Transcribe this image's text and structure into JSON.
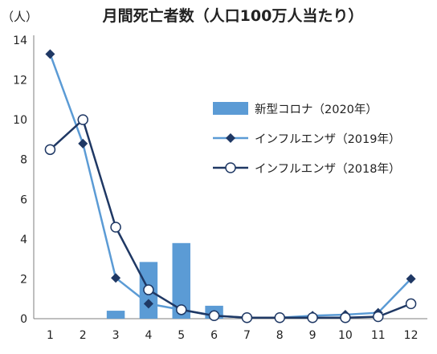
{
  "chart_data": {
    "type": "bar",
    "title": "月間死亡者数（人口100万人当たり）",
    "ylabel": "（人）",
    "xlabel": "",
    "ylim": [
      0,
      14
    ],
    "y_ticks": [
      0,
      2,
      4,
      6,
      8,
      10,
      12,
      14
    ],
    "categories": [
      "1",
      "2",
      "3",
      "4",
      "5",
      "6",
      "7",
      "8",
      "9",
      "10",
      "11",
      "12"
    ],
    "grid": false,
    "legend_position": "right-middle",
    "series": [
      {
        "name": "新型コロナ（2020年）",
        "kind": "bar",
        "color": "#5b9bd5",
        "values": [
          0,
          0,
          0.4,
          2.85,
          3.8,
          0.65,
          null,
          null,
          null,
          null,
          null,
          null
        ]
      },
      {
        "name": "インフルエンザ（2019年）",
        "kind": "line",
        "marker": "diamond",
        "line_color": "#5b9bd5",
        "marker_color": "#1f3864",
        "values": [
          13.3,
          8.8,
          2.05,
          0.75,
          0.45,
          0.15,
          0.05,
          0.05,
          0.15,
          0.2,
          0.3,
          2.0
        ]
      },
      {
        "name": "インフルエンザ（2018年）",
        "kind": "line",
        "marker": "circle",
        "line_color": "#1f3864",
        "marker_color": "#1f3864",
        "values": [
          8.5,
          10.0,
          4.6,
          1.45,
          0.45,
          0.15,
          0.05,
          0.05,
          0.05,
          0.05,
          0.1,
          0.75
        ]
      }
    ]
  }
}
